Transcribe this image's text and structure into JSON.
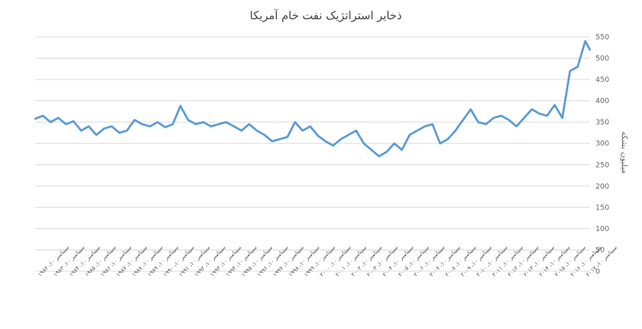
{
  "chart_data": {
    "type": "line",
    "title": "ذخایر استراتژیک نفت خام آمریکا",
    "ylabel": "میلیون بشکه",
    "ylim": [
      0,
      550
    ],
    "yticks": [
      0,
      50,
      100,
      150,
      200,
      250,
      300,
      350,
      400,
      450,
      500,
      550
    ],
    "grid": true,
    "legend": "none",
    "colors": {
      "series": "#5b9bd5",
      "grid": "#dcdcdc",
      "text": "#666666"
    },
    "x_tick_labels": [
      "سپتامبر ۱۰، ۱۹۸۲",
      "سپتامبر ۱۰، ۱۹۸۳",
      "سپتامبر ۱۰، ۱۹۸۴",
      "سپتامبر ۱۰، ۱۹۸۵",
      "سپتامبر ۱۰، ۱۹۸۶",
      "سپتامبر ۱۰، ۱۹۸۷",
      "سپتامبر ۱۰، ۱۹۸۸",
      "سپتامبر ۱۰، ۱۹۸۹",
      "سپتامبر ۱۰، ۱۹۹۰",
      "سپتامبر ۱۰، ۱۹۹۱",
      "سپتامبر ۱۰، ۱۹۹۲",
      "سپتامبر ۱۰، ۱۹۹۳",
      "سپتامبر ۱۰، ۱۹۹۴",
      "سپتامبر ۱۰، ۱۹۹۵",
      "سپتامبر ۱۰، ۱۹۹۶",
      "سپتامبر ۱۰، ۱۹۹۷",
      "سپتامبر ۱۰، ۱۹۹۸",
      "سپتامبر ۱۰، ۱۹۹۹",
      "سپتامبر ۱۰، ۲۰۰۰",
      "سپتامبر ۱۰، ۲۰۰۱",
      "سپتامبر ۱۰، ۲۰۰۲",
      "سپتامبر ۱۰، ۲۰۰۳",
      "سپتامبر ۱۰، ۲۰۰۴",
      "سپتامبر ۱۰، ۲۰۰۵",
      "سپتامبر ۱۰، ۲۰۰۶",
      "سپتامبر ۱۰، ۲۰۰۷",
      "سپتامبر ۱۰، ۲۰۰۸",
      "سپتامبر ۱۰، ۲۰۰۹",
      "سپتامبر ۱۰، ۲۰۱۰",
      "سپتامبر ۱۰، ۲۰۱۱",
      "سپتامبر ۱۰، ۲۰۱۲",
      "سپتامبر ۱۰، ۲۰۱۳",
      "سپتامبر ۱۰، ۲۰۱۴",
      "سپتامبر ۱۰، ۲۰۱۵",
      "سپتامبر ۱۰، ۲۰۱۶",
      "سپتامبر ۱۰، ۲۰۱۷"
    ],
    "x": [
      1982.0,
      1982.5,
      1983.0,
      1983.5,
      1984.0,
      1984.5,
      1985.0,
      1985.5,
      1986.0,
      1986.5,
      1987.0,
      1987.5,
      1988.0,
      1988.5,
      1989.0,
      1989.5,
      1990.0,
      1990.5,
      1991.0,
      1991.5,
      1992.0,
      1992.5,
      1993.0,
      1993.5,
      1994.0,
      1994.5,
      1995.0,
      1995.5,
      1996.0,
      1996.5,
      1997.0,
      1997.5,
      1998.0,
      1998.5,
      1999.0,
      1999.5,
      2000.0,
      2000.5,
      2001.0,
      2001.5,
      2002.0,
      2002.5,
      2003.0,
      2003.5,
      2004.0,
      2004.5,
      2005.0,
      2005.5,
      2006.0,
      2006.5,
      2007.0,
      2007.5,
      2008.0,
      2008.5,
      2009.0,
      2009.5,
      2010.0,
      2010.5,
      2011.0,
      2011.5,
      2012.0,
      2012.5,
      2013.0,
      2013.5,
      2014.0,
      2014.5,
      2015.0,
      2015.5,
      2016.0,
      2016.5,
      2017.0,
      2017.5,
      2018.0,
      2018.3
    ],
    "series": [
      {
        "values": [
          358,
          365,
          350,
          360,
          345,
          352,
          330,
          340,
          320,
          335,
          340,
          325,
          330,
          355,
          345,
          340,
          350,
          338,
          345,
          388,
          355,
          345,
          350,
          340,
          345,
          350,
          340,
          330,
          345,
          330,
          320,
          305,
          310,
          315,
          350,
          330,
          340,
          318,
          305,
          295,
          310,
          320,
          330,
          300,
          285,
          270,
          280,
          300,
          285,
          320,
          330,
          340,
          345,
          300,
          310,
          330,
          355,
          380,
          350,
          345,
          360,
          365,
          355,
          340,
          360,
          380,
          370,
          365,
          390,
          360,
          470,
          480,
          540,
          520
        ]
      }
    ]
  }
}
